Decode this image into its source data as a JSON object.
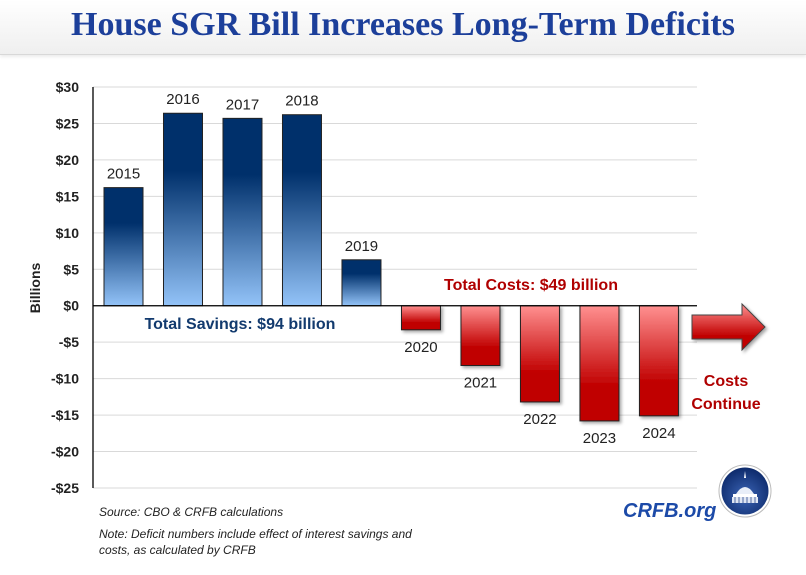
{
  "header": {
    "title": "House SGR Bill Increases Long-Term Deficits"
  },
  "chart_data": {
    "type": "bar",
    "title": "House SGR Bill Increases Long-Term Deficits",
    "xlabel": "",
    "ylabel": "Billions",
    "ylim": [
      -25,
      30
    ],
    "yticks": [
      30,
      25,
      20,
      15,
      10,
      5,
      0,
      -5,
      -10,
      -15,
      -20,
      -25
    ],
    "ytick_labels": [
      "$30",
      "$25",
      "$20",
      "$15",
      "$10",
      "$5",
      "$0",
      "-$5",
      "-$10",
      "-$15",
      "-$20",
      "-$25"
    ],
    "grid": true,
    "categories": [
      "2015",
      "2016",
      "2017",
      "2018",
      "2019",
      "2020",
      "2021",
      "2022",
      "2023",
      "2024"
    ],
    "values": [
      16.2,
      26.4,
      25.7,
      26.2,
      6.3,
      -3.3,
      -8.2,
      -13.2,
      -15.8,
      -15.1
    ],
    "colors": {
      "savings": "#00306b",
      "savings_light": "#93c3f8",
      "costs": "#c00000",
      "costs_light": "#ff9090"
    },
    "annotations": {
      "savings": "Total Savings: $94 billion",
      "costs": "Total Costs: $49 billion",
      "continue": [
        "Costs",
        "Continue"
      ]
    }
  },
  "footer": {
    "source": "Source: CBO & CRFB calculations",
    "note": "Note: Deficit numbers include effect of interest savings and costs, as calculated by CRFB",
    "brand": "CRFB.org",
    "logo_icon": "capitol-dome-logo-icon"
  }
}
